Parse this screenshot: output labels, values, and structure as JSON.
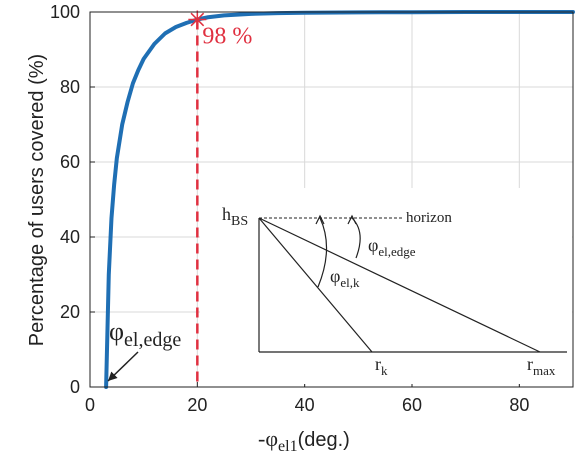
{
  "chart_data": {
    "type": "line",
    "xlabel": "-φ",
    "xlabel_sub": "el1",
    "xlabel_unit": "(deg.)",
    "ylabel": "Percentage of users covered (%)",
    "xlim": [
      0,
      90
    ],
    "ylim": [
      0,
      100
    ],
    "xticks": [
      0,
      20,
      40,
      60,
      80
    ],
    "yticks": [
      0,
      20,
      40,
      60,
      80,
      100
    ],
    "grid": true,
    "series": [
      {
        "color": "#1f6fb4",
        "x": [
          3,
          3.5,
          4,
          4.5,
          5,
          6,
          7,
          8,
          9,
          10,
          12,
          14,
          16,
          18,
          20,
          22,
          25,
          30,
          35,
          40,
          50,
          60,
          70,
          80,
          90
        ],
        "y": [
          0,
          30,
          45,
          54,
          61,
          70,
          76,
          81,
          84.5,
          87.5,
          91.5,
          94.3,
          96,
          97.1,
          98,
          98.6,
          99.1,
          99.5,
          99.7,
          99.8,
          99.9,
          99.95,
          100,
          100,
          100
        ]
      }
    ],
    "marker": {
      "x": 20,
      "y": 98,
      "label": "98 %",
      "color": "#e03040"
    },
    "annotation": {
      "label": "φ",
      "label_sub": "el,edge",
      "x": 3,
      "y": 0
    },
    "inset": {
      "h_label": "h",
      "h_sub": "BS",
      "horizon_label": "horizon",
      "angle_edge_label": "φ",
      "angle_edge_sub": "el,edge",
      "angle_k_label": "φ",
      "angle_k_sub": "el,k",
      "rk_label": "r",
      "rk_sub": "k",
      "rmax_label": "r",
      "rmax_sub": "max"
    }
  }
}
